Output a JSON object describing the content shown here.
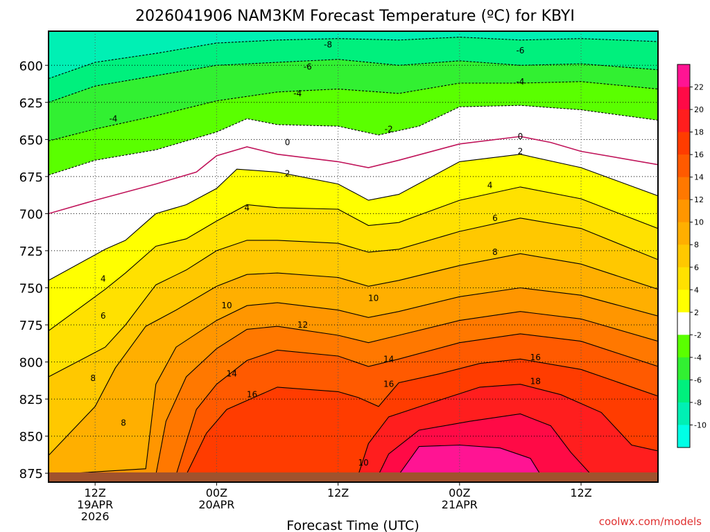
{
  "chart_data": {
    "type": "heatmap",
    "title": "2026041906 NAM3KM Forecast Temperature (ºC) for KBYI",
    "xlabel": "Forecast Time (UTC)",
    "ylabel": "",
    "watermark": "coolwx.com/models",
    "y_axis": {
      "ticks": [
        600,
        625,
        650,
        675,
        700,
        725,
        750,
        775,
        800,
        825,
        850,
        875
      ],
      "range": [
        577,
        881
      ],
      "inverted": true
    },
    "x_axis": {
      "range_hours": [
        -4.6,
        55.6
      ],
      "ticks": [
        {
          "hour": 0,
          "lines": [
            "12Z",
            "19APR",
            "2026"
          ]
        },
        {
          "hour": 12,
          "lines": [
            "00Z",
            "20APR"
          ]
        },
        {
          "hour": 24,
          "lines": [
            "12Z"
          ]
        },
        {
          "hour": 36,
          "lines": [
            "00Z",
            "21APR"
          ]
        },
        {
          "hour": 48,
          "lines": [
            "12Z"
          ]
        }
      ]
    },
    "colorbar": {
      "bins": [
        {
          "from": 22,
          "to": 24,
          "color": "#ff1493"
        },
        {
          "from": 20,
          "to": 22,
          "color": "#ff0a46"
        },
        {
          "from": 18,
          "to": 20,
          "color": "#ff1e1e"
        },
        {
          "from": 16,
          "to": 18,
          "color": "#ff3c00"
        },
        {
          "from": 14,
          "to": 16,
          "color": "#ff5a00"
        },
        {
          "from": 12,
          "to": 14,
          "color": "#ff7800"
        },
        {
          "from": 10,
          "to": 12,
          "color": "#ff9600"
        },
        {
          "from": 8,
          "to": 10,
          "color": "#ffaf00"
        },
        {
          "from": 6,
          "to": 8,
          "color": "#ffc800"
        },
        {
          "from": 4,
          "to": 6,
          "color": "#ffe100"
        },
        {
          "from": 2,
          "to": 4,
          "color": "#ffff00"
        },
        {
          "from": -2,
          "to": 2,
          "color": "#ffffff"
        },
        {
          "from": -4,
          "to": -2,
          "color": "#5aff00"
        },
        {
          "from": -6,
          "to": -4,
          "color": "#32f032"
        },
        {
          "from": -8,
          "to": -6,
          "color": "#00f07d"
        },
        {
          "from": -10,
          "to": -8,
          "color": "#00f0b4"
        },
        {
          "from": -12,
          "to": -10,
          "color": "#00ffe6"
        }
      ],
      "tick_labels": [
        "22",
        "20",
        "18",
        "16",
        "14",
        "12",
        "10",
        "8",
        "6",
        "4",
        "2",
        "-2",
        "-4",
        "-6",
        "-8",
        "-10"
      ]
    },
    "ground_color": "#a0522d",
    "freezing_line_color": "#c0145a",
    "series": [
      {
        "level": -8,
        "points": [
          [
            -4.6,
            609
          ],
          [
            0,
            598
          ],
          [
            6,
            592
          ],
          [
            12,
            585
          ],
          [
            18,
            583
          ],
          [
            24,
            582
          ],
          [
            30,
            583
          ],
          [
            36,
            581
          ],
          [
            42,
            583
          ],
          [
            48,
            582
          ],
          [
            55.6,
            584
          ]
        ]
      },
      {
        "level": -6,
        "points": [
          [
            -4.6,
            625
          ],
          [
            0,
            614
          ],
          [
            6,
            607
          ],
          [
            12,
            600
          ],
          [
            18,
            598
          ],
          [
            24,
            596
          ],
          [
            30,
            600
          ],
          [
            36,
            597
          ],
          [
            42,
            600
          ],
          [
            48,
            599
          ],
          [
            55.6,
            603
          ]
        ]
      },
      {
        "level": -4,
        "points": [
          [
            -4.6,
            651
          ],
          [
            0,
            643
          ],
          [
            6,
            634
          ],
          [
            12,
            624
          ],
          [
            18,
            618
          ],
          [
            24,
            616
          ],
          [
            30,
            619
          ],
          [
            36,
            612
          ],
          [
            42,
            612
          ],
          [
            48,
            611
          ],
          [
            55.6,
            616
          ]
        ]
      },
      {
        "level": -2,
        "points": [
          [
            -4.6,
            674
          ],
          [
            0,
            664
          ],
          [
            6,
            657
          ],
          [
            12,
            645
          ],
          [
            15,
            636
          ],
          [
            18,
            640
          ],
          [
            24,
            641
          ],
          [
            28,
            647
          ],
          [
            32,
            641
          ],
          [
            36,
            628
          ],
          [
            42,
            627
          ],
          [
            48,
            630
          ],
          [
            55.6,
            637
          ]
        ]
      },
      {
        "level": 0,
        "points": [
          [
            -4.6,
            700
          ],
          [
            0,
            691
          ],
          [
            6,
            680
          ],
          [
            10,
            672
          ],
          [
            12,
            661
          ],
          [
            15,
            655
          ],
          [
            18,
            660
          ],
          [
            24,
            665
          ],
          [
            27,
            669
          ],
          [
            30,
            664
          ],
          [
            36,
            653
          ],
          [
            42,
            648
          ],
          [
            45,
            652
          ],
          [
            48,
            658
          ],
          [
            55.6,
            667
          ]
        ]
      },
      {
        "level": 2,
        "points": [
          [
            -4.6,
            745
          ],
          [
            1,
            724
          ],
          [
            3,
            718
          ],
          [
            6,
            700
          ],
          [
            9,
            694
          ],
          [
            12,
            683
          ],
          [
            14,
            670
          ],
          [
            18,
            672
          ],
          [
            24,
            680
          ],
          [
            27,
            691
          ],
          [
            30,
            687
          ],
          [
            36,
            665
          ],
          [
            42,
            660
          ],
          [
            48,
            669
          ],
          [
            55.6,
            688
          ]
        ]
      },
      {
        "level": 4,
        "points": [
          [
            -4.6,
            779
          ],
          [
            1,
            751
          ],
          [
            3,
            740
          ],
          [
            6,
            722
          ],
          [
            9,
            717
          ],
          [
            12,
            705
          ],
          [
            15,
            694
          ],
          [
            18,
            696
          ],
          [
            24,
            697
          ],
          [
            27,
            708
          ],
          [
            30,
            706
          ],
          [
            36,
            691
          ],
          [
            42,
            682
          ],
          [
            48,
            690
          ],
          [
            55.6,
            710
          ]
        ]
      },
      {
        "level": 6,
        "points": [
          [
            -4.6,
            810
          ],
          [
            1,
            790
          ],
          [
            3,
            775
          ],
          [
            6,
            748
          ],
          [
            9,
            738
          ],
          [
            12,
            725
          ],
          [
            15,
            718
          ],
          [
            18,
            718
          ],
          [
            24,
            720
          ],
          [
            27,
            726
          ],
          [
            30,
            724
          ],
          [
            36,
            712
          ],
          [
            42,
            703
          ],
          [
            48,
            710
          ],
          [
            55.6,
            731
          ]
        ]
      },
      {
        "level": 8,
        "points": [
          [
            -4.6,
            863
          ],
          [
            0,
            830
          ],
          [
            2,
            804
          ],
          [
            5,
            776
          ],
          [
            8,
            765
          ],
          [
            12,
            749
          ],
          [
            15,
            741
          ],
          [
            18,
            740
          ],
          [
            24,
            743
          ],
          [
            27,
            749
          ],
          [
            30,
            745
          ],
          [
            36,
            735
          ],
          [
            42,
            727
          ],
          [
            48,
            734
          ],
          [
            55.6,
            751
          ]
        ]
      },
      {
        "level": 10,
        "points": [
          [
            -4.6,
            876
          ],
          [
            5,
            872
          ],
          [
            6,
            815
          ],
          [
            8,
            790
          ],
          [
            12,
            772
          ],
          [
            15,
            762
          ],
          [
            18,
            760
          ],
          [
            24,
            765
          ],
          [
            27,
            770
          ],
          [
            30,
            766
          ],
          [
            36,
            756
          ],
          [
            42,
            750
          ],
          [
            48,
            755
          ],
          [
            55.6,
            769
          ]
        ]
      },
      {
        "level": 12,
        "points": [
          [
            6,
            876
          ],
          [
            7,
            840
          ],
          [
            9,
            810
          ],
          [
            12,
            791
          ],
          [
            15,
            778
          ],
          [
            18,
            776
          ],
          [
            24,
            782
          ],
          [
            27,
            787
          ],
          [
            30,
            782
          ],
          [
            36,
            772
          ],
          [
            42,
            766
          ],
          [
            48,
            771
          ],
          [
            55.6,
            786
          ]
        ]
      },
      {
        "level": 14,
        "points": [
          [
            8,
            876
          ],
          [
            10,
            832
          ],
          [
            12,
            815
          ],
          [
            15,
            799
          ],
          [
            18,
            792
          ],
          [
            24,
            796
          ],
          [
            27,
            803
          ],
          [
            30,
            798
          ],
          [
            36,
            787
          ],
          [
            42,
            781
          ],
          [
            48,
            786
          ],
          [
            55.6,
            803
          ]
        ]
      },
      {
        "level": 16,
        "points": [
          [
            9,
            876
          ],
          [
            11,
            848
          ],
          [
            13,
            832
          ],
          [
            16,
            823
          ],
          [
            18,
            817
          ],
          [
            24,
            820
          ],
          [
            26,
            824
          ],
          [
            28,
            830
          ],
          [
            30,
            814
          ],
          [
            34,
            808
          ],
          [
            38,
            801
          ],
          [
            42,
            798
          ],
          [
            48,
            805
          ],
          [
            55.6,
            823
          ]
        ]
      },
      {
        "level": 18,
        "points": [
          [
            26,
            876
          ],
          [
            27,
            855
          ],
          [
            29,
            837
          ],
          [
            33,
            828
          ],
          [
            38,
            817
          ],
          [
            42,
            815
          ],
          [
            46,
            822
          ],
          [
            50,
            834
          ],
          [
            53,
            856
          ],
          [
            55.6,
            860
          ]
        ]
      },
      {
        "level": 20,
        "points": [
          [
            28,
            876
          ],
          [
            29,
            862
          ],
          [
            32,
            846
          ],
          [
            37,
            840
          ],
          [
            42,
            835
          ],
          [
            45,
            843
          ],
          [
            47,
            861
          ],
          [
            49,
            876
          ]
        ]
      },
      {
        "level": 22,
        "points": [
          [
            30,
            876
          ],
          [
            32,
            857
          ],
          [
            36,
            856
          ],
          [
            40,
            858
          ],
          [
            43,
            865
          ],
          [
            44,
            876
          ]
        ]
      }
    ],
    "contour_labels": [
      {
        "text": "-8",
        "hour": 23,
        "p": 586
      },
      {
        "text": "-6",
        "hour": 42,
        "p": 590
      },
      {
        "text": "-6",
        "hour": 21,
        "p": 601
      },
      {
        "text": "-4",
        "hour": 42,
        "p": 611
      },
      {
        "text": "-4",
        "hour": 20,
        "p": 619
      },
      {
        "text": "-4",
        "hour": 1.8,
        "p": 636
      },
      {
        "text": "-2",
        "hour": 29,
        "p": 643
      },
      {
        "text": "0",
        "hour": 19,
        "p": 652
      },
      {
        "text": "0",
        "hour": 42,
        "p": 648
      },
      {
        "text": "2",
        "hour": 19,
        "p": 673
      },
      {
        "text": "2",
        "hour": 42,
        "p": 658
      },
      {
        "text": "4",
        "hour": 39,
        "p": 681
      },
      {
        "text": "4",
        "hour": 15,
        "p": 696
      },
      {
        "text": "4",
        "hour": 0.8,
        "p": 744
      },
      {
        "text": "6",
        "hour": 39.5,
        "p": 703
      },
      {
        "text": "6",
        "hour": 0.8,
        "p": 769
      },
      {
        "text": "8",
        "hour": 39.5,
        "p": 726
      },
      {
        "text": "8",
        "hour": -0.2,
        "p": 811
      },
      {
        "text": "8",
        "hour": 2.8,
        "p": 841
      },
      {
        "text": "10",
        "hour": 27.5,
        "p": 757
      },
      {
        "text": "10",
        "hour": 13,
        "p": 762
      },
      {
        "text": "10",
        "hour": 26.5,
        "p": 868
      },
      {
        "text": "12",
        "hour": 20.5,
        "p": 775
      },
      {
        "text": "14",
        "hour": 29,
        "p": 798
      },
      {
        "text": "14",
        "hour": 13.5,
        "p": 808
      },
      {
        "text": "16",
        "hour": 43.5,
        "p": 797
      },
      {
        "text": "16",
        "hour": 15.5,
        "p": 822
      },
      {
        "text": "16",
        "hour": 29,
        "p": 815
      },
      {
        "text": "18",
        "hour": 43.5,
        "p": 813
      }
    ]
  }
}
